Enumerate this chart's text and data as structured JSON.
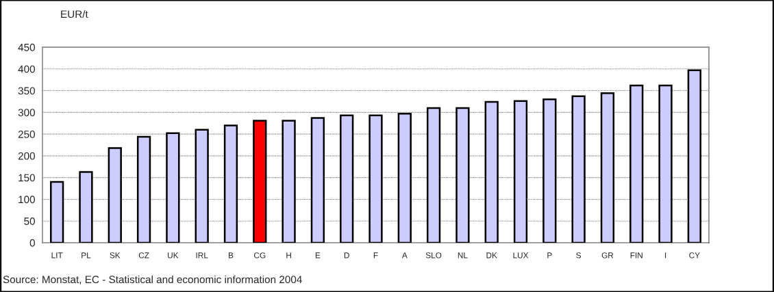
{
  "chart_data": {
    "type": "bar",
    "ylabel": "EUR/t",
    "categories": [
      "LIT",
      "PL",
      "SK",
      "CZ",
      "UK",
      "IRL",
      "B",
      "CG",
      "H",
      "E",
      "D",
      "F",
      "A",
      "SLO",
      "NL",
      "DK",
      "LUX",
      "P",
      "S",
      "GR",
      "FIN",
      "I",
      "CY"
    ],
    "values": [
      140,
      163,
      218,
      244,
      252,
      260,
      270,
      281,
      281,
      287,
      293,
      293,
      297,
      310,
      310,
      324,
      326,
      330,
      337,
      344,
      362,
      362,
      397
    ],
    "colors": [
      "#ccccff",
      "#ccccff",
      "#ccccff",
      "#ccccff",
      "#ccccff",
      "#ccccff",
      "#ccccff",
      "#ff0000",
      "#ccccff",
      "#ccccff",
      "#ccccff",
      "#ccccff",
      "#ccccff",
      "#ccccff",
      "#ccccff",
      "#ccccff",
      "#ccccff",
      "#ccccff",
      "#ccccff",
      "#ccccff",
      "#ccccff",
      "#ccccff",
      "#ccccff"
    ],
    "ylim": [
      0,
      450
    ],
    "yticks": [
      0,
      50,
      100,
      150,
      200,
      250,
      300,
      350,
      400,
      450
    ],
    "grid": "y",
    "legend": false,
    "annotations": [
      "Source: Monstat, EC - Statistical and economic information 2004"
    ]
  }
}
